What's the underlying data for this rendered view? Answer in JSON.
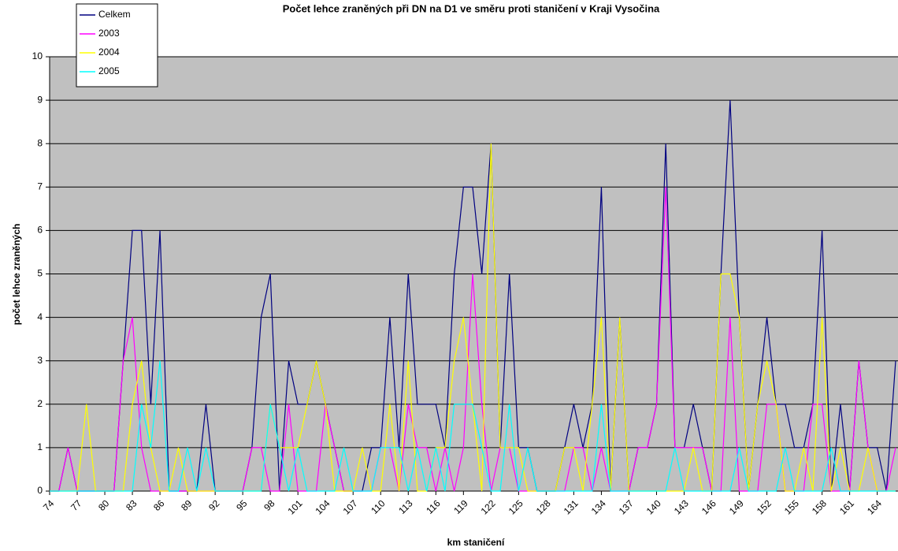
{
  "chart_data": {
    "type": "line",
    "title": "Počet lehce zraněných při DN na D1 ve směru proti staničení v Kraji Vysočina",
    "x_label": "km staničení",
    "y_label": "počet lehce zraněných",
    "categories": [
      "74",
      null,
      null,
      "77",
      null,
      null,
      "80",
      null,
      null,
      "83",
      null,
      null,
      "86",
      null,
      null,
      "89",
      null,
      null,
      "92",
      null,
      null,
      "95",
      null,
      null,
      "98",
      null,
      null,
      "101",
      null,
      null,
      "104",
      null,
      null,
      "107",
      null,
      null,
      "110",
      null,
      null,
      "113",
      null,
      null,
      "116",
      null,
      null,
      "119",
      null,
      null,
      "122",
      null,
      null,
      "125",
      null,
      null,
      "128",
      null,
      null,
      "131",
      null,
      null,
      "134",
      null,
      null,
      "137",
      null,
      null,
      "140",
      null,
      null,
      "143",
      null,
      null,
      "146",
      null,
      null,
      "149",
      null,
      null,
      "152",
      null,
      null,
      "155",
      null,
      null,
      "158",
      null,
      null,
      "161",
      null,
      null,
      "164",
      null,
      null
    ],
    "series": [
      {
        "name": "Celkem",
        "color": "#000080",
        "values": [
          0,
          0,
          1,
          0,
          0,
          0,
          0,
          0,
          3,
          6,
          6,
          2,
          6,
          0,
          0,
          0,
          0,
          2,
          0,
          0,
          0,
          0,
          1,
          4,
          5,
          0,
          3,
          2,
          2,
          3,
          2,
          1,
          0,
          0,
          0,
          1,
          1,
          4,
          1,
          5,
          2,
          2,
          2,
          1,
          5,
          7,
          7,
          5,
          8,
          1,
          5,
          1,
          1,
          0,
          0,
          0,
          1,
          2,
          1,
          2,
          7,
          0,
          4,
          0,
          1,
          1,
          2,
          8,
          1,
          1,
          2,
          1,
          0,
          5,
          9,
          4,
          0,
          2,
          4,
          2,
          2,
          1,
          1,
          2,
          6,
          0,
          2,
          0,
          3,
          1,
          1,
          0,
          3
        ]
      },
      {
        "name": "2003",
        "color": "#ff00ff",
        "values": [
          0,
          0,
          1,
          0,
          0,
          0,
          0,
          0,
          3,
          4,
          1,
          0,
          0,
          0,
          0,
          0,
          0,
          0,
          0,
          0,
          0,
          0,
          1,
          1,
          0,
          0,
          2,
          0,
          0,
          0,
          2,
          1,
          0,
          0,
          0,
          0,
          1,
          1,
          0,
          2,
          1,
          1,
          0,
          1,
          0,
          1,
          5,
          2,
          0,
          1,
          1,
          0,
          0,
          0,
          0,
          0,
          0,
          1,
          1,
          0,
          1,
          0,
          0,
          0,
          1,
          1,
          2,
          7,
          1,
          1,
          1,
          1,
          0,
          0,
          4,
          0,
          0,
          0,
          2,
          2,
          0,
          0,
          0,
          2,
          2,
          0,
          0,
          0,
          3,
          1,
          0,
          0,
          1
        ]
      },
      {
        "name": "2004",
        "color": "#ffff00",
        "values": [
          0,
          0,
          0,
          0,
          2,
          0,
          0,
          0,
          0,
          2,
          3,
          1,
          0,
          0,
          1,
          0,
          0,
          0,
          0,
          0,
          0,
          0,
          0,
          0,
          2,
          1,
          1,
          1,
          2,
          3,
          2,
          0,
          0,
          0,
          1,
          0,
          0,
          2,
          0,
          3,
          0,
          0,
          1,
          1,
          3,
          4,
          2,
          0,
          8,
          1,
          1,
          1,
          0,
          0,
          0,
          0,
          1,
          1,
          0,
          2,
          4,
          0,
          4,
          0,
          0,
          0,
          0,
          0,
          0,
          0,
          1,
          0,
          0,
          5,
          5,
          4,
          0,
          2,
          3,
          2,
          0,
          0,
          1,
          0,
          4,
          0,
          1,
          0,
          0,
          1,
          0,
          0,
          0
        ]
      },
      {
        "name": "2005",
        "color": "#00ffff",
        "values": [
          0,
          0,
          0,
          0,
          0,
          0,
          0,
          0,
          0,
          0,
          2,
          1,
          3,
          0,
          0,
          1,
          0,
          1,
          0,
          0,
          0,
          0,
          0,
          0,
          2,
          1,
          0,
          1,
          0,
          0,
          0,
          0,
          1,
          0,
          0,
          0,
          1,
          1,
          1,
          0,
          1,
          0,
          1,
          0,
          2,
          2,
          2,
          1,
          0,
          0,
          2,
          0,
          1,
          0,
          0,
          0,
          0,
          0,
          0,
          0,
          2,
          0,
          0,
          0,
          0,
          0,
          0,
          0,
          1,
          0,
          0,
          0,
          0,
          0,
          0,
          1,
          0,
          0,
          0,
          0,
          1,
          0,
          0,
          0,
          0,
          1,
          0,
          0,
          0,
          0,
          0,
          0,
          0
        ]
      }
    ],
    "ylim": [
      0,
      10
    ],
    "yticks": [
      0,
      1,
      2,
      3,
      4,
      5,
      6,
      7,
      8,
      9,
      10
    ],
    "grid": true,
    "legend": "top-left",
    "plot_background": "#c0c0c0"
  }
}
